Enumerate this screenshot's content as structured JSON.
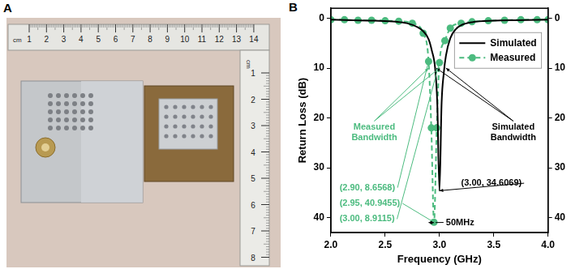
{
  "photo": {
    "panel_label": "A",
    "ruler_horizontal": [
      1,
      2,
      3,
      4,
      5,
      6,
      7,
      8,
      9,
      10,
      11,
      12,
      13,
      14
    ],
    "ruler_vertical": [
      1,
      2,
      3,
      4,
      5,
      6,
      7,
      8
    ],
    "ruler_unit": "cm"
  },
  "chart_data": {
    "type": "line",
    "panel_label": "B",
    "x_label": "Frequency (GHz)",
    "y_label": "Return Loss (dB)",
    "xlim": [
      2,
      4
    ],
    "xticks": [
      {
        "value": 2,
        "label": "2.0"
      },
      {
        "value": 2.5,
        "label": "2.5"
      },
      {
        "value": 3,
        "label": "3.0"
      },
      {
        "value": 3.5,
        "label": "3.5"
      },
      {
        "value": 4,
        "label": "4.0"
      }
    ],
    "ylim": [
      43,
      -2
    ],
    "yticks": [
      0,
      10,
      20,
      30,
      40
    ],
    "y2lim": [
      43,
      -2
    ],
    "y2ticks": [
      0,
      10,
      20,
      30,
      40
    ],
    "grid": false,
    "legend": "upper right",
    "series": [
      {
        "name": "Simulated",
        "color": "#000000",
        "marker": "none",
        "line_style": "solid",
        "x": [
          2.0,
          2.2,
          2.4,
          2.6,
          2.7,
          2.8,
          2.85,
          2.9,
          2.93,
          2.96,
          2.98,
          3.0,
          3.02,
          3.04,
          3.06,
          3.1,
          3.15,
          3.2,
          3.3,
          3.5,
          3.7,
          4.0
        ],
        "values": [
          0.3,
          0.4,
          0.5,
          0.7,
          1.0,
          1.8,
          2.6,
          4.2,
          6.5,
          10,
          17,
          34.6069,
          17,
          11,
          7.5,
          4,
          2.2,
          1.4,
          0.8,
          0.5,
          0.4,
          0.3
        ]
      },
      {
        "name": "Measured",
        "color": "#4cbb7f",
        "marker": "circle",
        "line_style": "dashed",
        "x": [
          2.0,
          2.125,
          2.25,
          2.375,
          2.5,
          2.625,
          2.75,
          2.85,
          2.9,
          2.925,
          2.95,
          2.975,
          3.0,
          3.05,
          3.1,
          3.2,
          3.3,
          3.45,
          3.6,
          3.75,
          3.9,
          4.0
        ],
        "values": [
          0.3,
          0.3,
          0.4,
          0.4,
          0.5,
          0.6,
          1.0,
          3.0,
          8.6568,
          22,
          40.9455,
          22,
          8.9115,
          4.5,
          2.0,
          1.0,
          0.7,
          0.5,
          0.4,
          0.3,
          0.3,
          0.3
        ]
      }
    ],
    "annotations": [
      {
        "type": "callout",
        "lines": [
          "Measured",
          "Bandwidth"
        ],
        "color": "#4cbb7f",
        "points": [
          [
            2.9,
            10
          ],
          [
            3.0,
            10
          ]
        ]
      },
      {
        "type": "callout",
        "lines": [
          "Simulated",
          "Bandwidth"
        ],
        "color": "#000000",
        "points": [
          [
            2.97,
            10
          ],
          [
            3.06,
            10
          ]
        ]
      },
      {
        "type": "callout",
        "lines": [
          "(2.90, 8.6568)"
        ],
        "color": "#4cbb7f",
        "points": [
          [
            2.9,
            8.6568
          ]
        ]
      },
      {
        "type": "callout",
        "lines": [
          "(2.95, 40.9455)"
        ],
        "color": "#4cbb7f",
        "points": [
          [
            2.95,
            40.9455
          ]
        ]
      },
      {
        "type": "callout",
        "lines": [
          "(3.00, 8.9115)"
        ],
        "color": "#4cbb7f",
        "points": [
          [
            3.0,
            8.9115
          ]
        ]
      },
      {
        "type": "callout",
        "lines": [
          "(3.00, 34.6069)"
        ],
        "color": "#000000",
        "points": [
          [
            3.0,
            34.6069
          ]
        ]
      },
      {
        "type": "dimension",
        "lines": [
          "50MHz"
        ],
        "color": "#000000",
        "points": [
          [
            2.9,
            41
          ],
          [
            2.95,
            41
          ]
        ]
      }
    ]
  }
}
